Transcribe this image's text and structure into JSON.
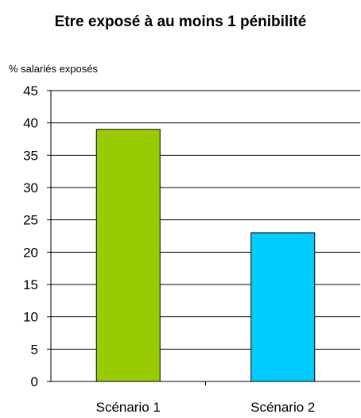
{
  "chart_data": {
    "type": "bar",
    "title": "Etre exposé à au moins 1 pénibilité",
    "ylabel": "% salariés exposés",
    "xlabel": "",
    "categories": [
      "Scénario 1",
      "Scénario 2"
    ],
    "values": [
      39,
      23
    ],
    "bar_colors": [
      "#99cc00",
      "#00ccff"
    ],
    "ylim": [
      0,
      45
    ],
    "yticks": [
      0,
      5,
      10,
      15,
      20,
      25,
      30,
      35,
      40,
      45
    ],
    "grid": true,
    "legend": "none"
  }
}
